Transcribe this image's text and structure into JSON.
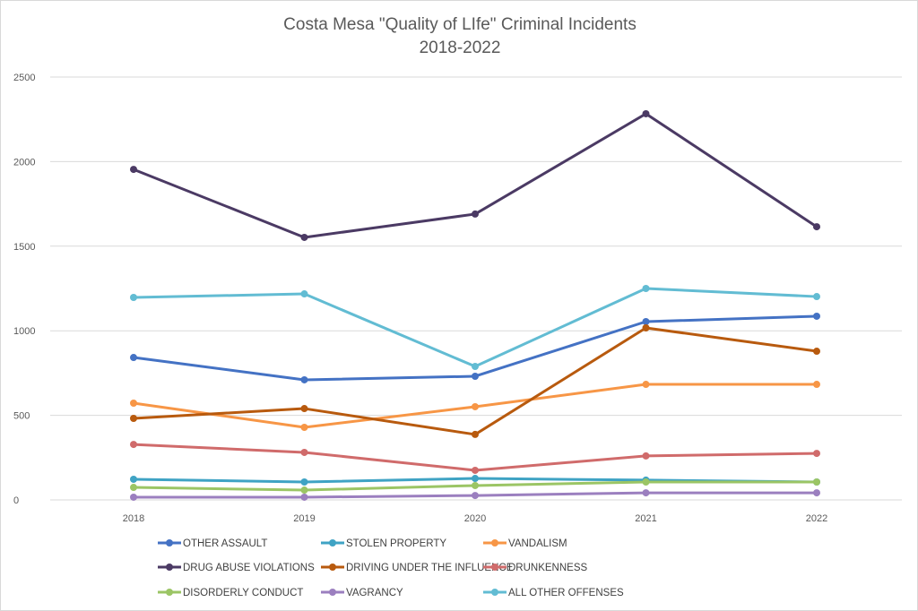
{
  "chart_data": {
    "type": "line",
    "title": "Costa Mesa \"Quality of LIfe\" Criminal Incidents",
    "subtitle": "2018-2022",
    "xlabel": "",
    "ylabel": "",
    "x": [
      "2018",
      "2019",
      "2020",
      "2021",
      "2022"
    ],
    "ylim": [
      0,
      2500
    ],
    "yticks": [
      "0",
      "500",
      "1000",
      "1500",
      "2000",
      "2500"
    ],
    "grid": true,
    "legend_position": "bottom",
    "series": [
      {
        "name": "OTHER ASSAULT",
        "color": "#4472c4",
        "values": [
          842,
          710,
          731,
          1054,
          1086
        ]
      },
      {
        "name": "STOLEN PROPERTY",
        "color": "#3fa3c4",
        "values": [
          122,
          106,
          127,
          117,
          106
        ]
      },
      {
        "name": "VANDALISM",
        "color": "#f79646",
        "values": [
          572,
          429,
          551,
          683,
          683
        ]
      },
      {
        "name": "DRUG ABUSE VIOLATIONS",
        "color": "#4b3a64",
        "values": [
          1954,
          1552,
          1690,
          2283,
          1615
        ]
      },
      {
        "name": "DRIVING UNDER THE INFLUENCE",
        "color": "#b85a0e",
        "values": [
          482,
          540,
          387,
          1017,
          879
        ]
      },
      {
        "name": "DRUNKENNESS",
        "color": "#d06b6b",
        "values": [
          328,
          281,
          175,
          260,
          275
        ]
      },
      {
        "name": "DISORDERLY CONDUCT",
        "color": "#9bc565",
        "values": [
          74,
          58,
          85,
          106,
          106
        ]
      },
      {
        "name": "VAGRANCY",
        "color": "#9b7fbf",
        "values": [
          16,
          16,
          26,
          42,
          42
        ]
      },
      {
        "name": "ALL OTHER OFFENSES",
        "color": "#62bcd3",
        "values": [
          1197,
          1218,
          789,
          1250,
          1202
        ]
      }
    ]
  }
}
